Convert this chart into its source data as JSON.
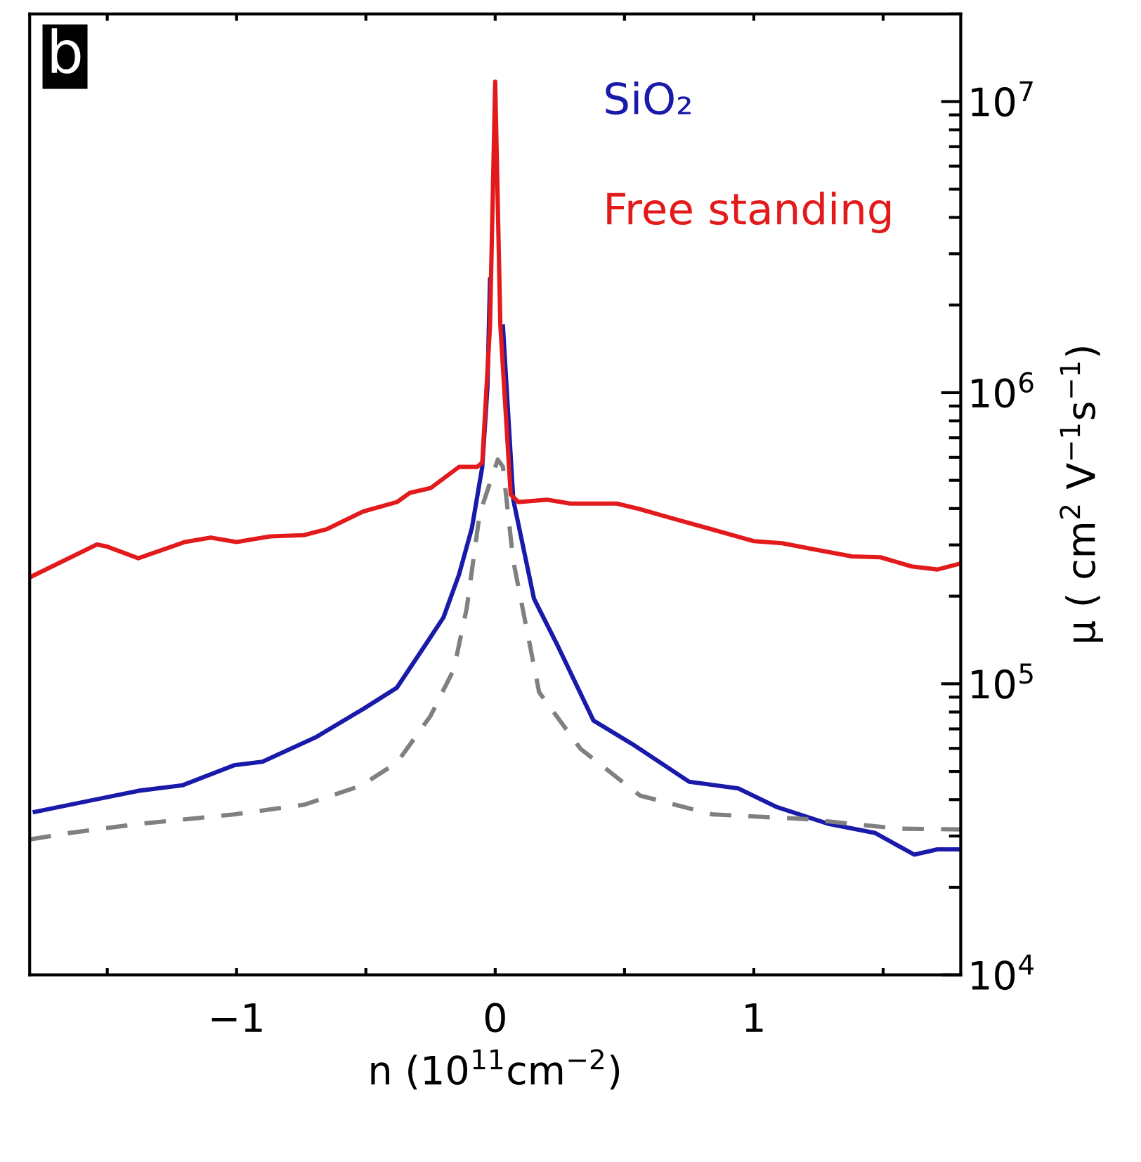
{
  "chart_data": {
    "type": "line",
    "xlabel": "n (10$^{11}$cm$^{−2}$)",
    "ylabel": "μ ( cm$^{2}$ V$^{−1}$s$^{−1}$)",
    "annotations": [
      "b"
    ],
    "log": "y",
    "legend": "top right",
    "grid": false,
    "marker": "none",
    "xlim": [
      -1.8,
      1.8
    ],
    "xticks": [
      {
        "value": -1.5,
        "label": null
      },
      -1,
      {
        "value": -0.5,
        "label": null
      },
      0,
      {
        "value": 0.5,
        "label": null
      },
      1,
      {
        "value": 1.5,
        "label": null
      }
    ],
    "ylim": [
      10000,
      20000000
    ],
    "yticks": [
      {
        "value": 10000,
        "label": "10$^{4}$"
      },
      {
        "value": 100000,
        "label": "10$^{5}$"
      },
      {
        "value": 1000000,
        "label": "10$^{6}$"
      },
      {
        "value": 10000000,
        "label": "10$^{7}$"
      }
    ],
    "series": [
      {
        "name": "SiO₂",
        "color": "#1a1aaa",
        "line_style": "solid",
        "x": [
          -1.78,
          -1.56,
          -1.38,
          -1.21,
          -1.01,
          -0.9,
          -0.69,
          -0.51,
          -0.38,
          -0.27,
          -0.2,
          -0.14,
          -0.09,
          -0.05,
          -0.03,
          -0.02,
          0,
          0.03,
          0.07,
          0.15,
          0.24,
          0.38,
          0.53,
          0.75,
          0.94,
          1.09,
          1.29,
          1.47,
          1.62,
          1.71,
          1.8
        ],
        "values": [
          36300,
          39800,
          42900,
          44800,
          52500,
          54000,
          65800,
          82000,
          97000,
          136000,
          169000,
          237000,
          343000,
          556000,
          1040000,
          2450000,
          null,
          1690000,
          429000,
          196000,
          136000,
          74800,
          62100,
          46100,
          43700,
          37700,
          33000,
          30700,
          25900,
          27000,
          27000
        ]
      },
      {
        "name": "Free standing",
        "color": "#e31a1c",
        "line_style": "solid",
        "x": [
          -1.8,
          -1.54,
          -1.5,
          -1.38,
          -1.2,
          -1.1,
          -1.0,
          -0.87,
          -0.74,
          -0.65,
          -0.51,
          -0.38,
          -0.33,
          -0.25,
          -0.14,
          -0.07,
          -0.05,
          -0.02,
          0,
          0.02,
          0.06,
          0.09,
          0.2,
          0.29,
          0.47,
          0.56,
          0.69,
          0.85,
          1.0,
          1.11,
          1.23,
          1.38,
          1.49,
          1.61,
          1.71,
          1.8
        ],
        "values": [
          232000,
          301000,
          296000,
          270000,
          307000,
          318000,
          307000,
          321000,
          324000,
          340000,
          391000,
          421000,
          453000,
          470000,
          556000,
          556000,
          575000,
          1700000,
          11700000,
          1700000,
          447000,
          421000,
          429000,
          416000,
          416000,
          398000,
          369000,
          337000,
          309000,
          304000,
          290000,
          274000,
          272000,
          253000,
          247000,
          259000
        ]
      },
      {
        "color": "#808080",
        "line_style": "dashed",
        "x": [
          -1.8,
          -1.65,
          -1.38,
          -1.01,
          -0.74,
          -0.52,
          -0.38,
          -0.25,
          -0.16,
          -0.11,
          -0.06,
          0.01,
          0.03,
          0.07,
          0.17,
          0.33,
          0.56,
          0.84,
          1.2,
          1.56,
          1.8
        ],
        "values": [
          29200,
          30700,
          33000,
          35600,
          38400,
          44600,
          53600,
          77600,
          112000,
          182000,
          384000,
          589000,
          556000,
          264000,
          93500,
          59800,
          41300,
          35600,
          34300,
          31800,
          31600
        ]
      }
    ]
  }
}
